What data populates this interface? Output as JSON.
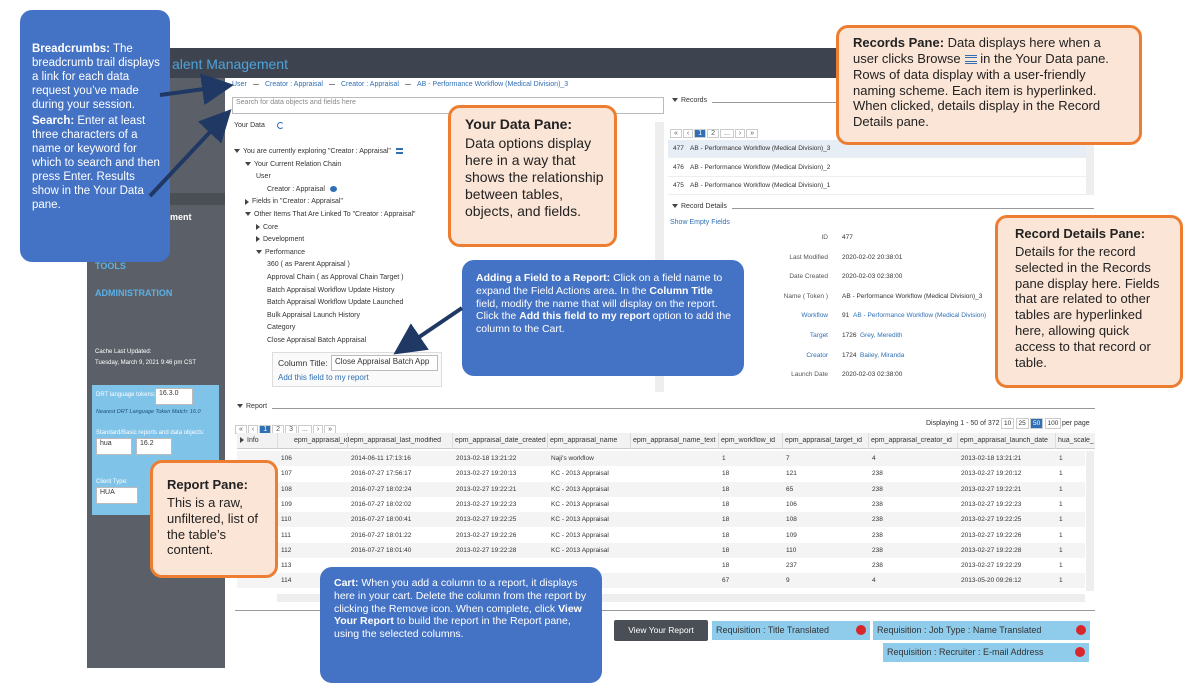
{
  "header": {
    "app_title": "alent Management"
  },
  "sidebar": {
    "nav": [
      "ment",
      "TOOLS",
      "ADMINISTRATION"
    ],
    "cache_label": "Cache Last Updated:",
    "cache_value": "Tuesday, March 9, 2021 9:46 pm CST",
    "drt_label": "DRT language tokens:",
    "drt_value": "16.3.0",
    "drt_match": "Nearest DRT Language Token Match: 16.0",
    "std_label": "Standard/Basic reports and data objects:",
    "std_values": [
      "hua",
      "16.2"
    ],
    "client_label": "Client Type:",
    "client_value": "HUA"
  },
  "breadcrumbs": [
    "User",
    "Creator : Appraisal",
    "Creator : Appraisal",
    "AB - Performance Workflow (Medical Division)_3"
  ],
  "search_placeholder": "Search for data objects and fields here",
  "your_data": {
    "label": "Your Data",
    "tree": [
      {
        "text": "You are currently exploring \"Creator : Appraisal\"",
        "icon": true,
        "expanded": true,
        "children": [
          {
            "text": "Your Current Relation Chain",
            "expanded": true,
            "children": [
              {
                "text": "User",
                "children": [
                  {
                    "text": "Creator : Appraisal",
                    "icon": true
                  }
                ]
              }
            ]
          },
          {
            "text": "Fields in \"Creator : Appraisal\"",
            "expanded": false
          },
          {
            "text": "Other Items That Are Linked To \"Creator : Appraisal\"",
            "expanded": true,
            "children": [
              {
                "text": "Core",
                "expanded": false
              },
              {
                "text": "Development",
                "expanded": false
              },
              {
                "text": "Performance",
                "expanded": true,
                "children": [
                  {
                    "text": "360 ( as Parent Appraisal )"
                  },
                  {
                    "text": "Approval Chain ( as Approval Chain Target )"
                  },
                  {
                    "text": "Batch Appraisal Workflow Update History"
                  },
                  {
                    "text": "Batch Appraisal Workflow Update Launched"
                  },
                  {
                    "text": "Bulk Appraisal Launch History"
                  },
                  {
                    "text": "Category"
                  },
                  {
                    "text": "Close Appraisal Batch Appraisal"
                  }
                ]
              }
            ]
          }
        ]
      }
    ],
    "column_title_label": "Column Title:",
    "column_title_value": "Close Appraisal Batch App",
    "add_link": "Add this field to my report"
  },
  "records": {
    "label": "Records",
    "pager": [
      "«",
      "‹",
      "1",
      "2",
      "...",
      "›",
      "»"
    ],
    "rows": [
      {
        "id": 477,
        "name": "AB - Performance Workflow (Medical Division)_3"
      },
      {
        "id": 476,
        "name": "AB - Performance Workflow (Medical Division)_2"
      },
      {
        "id": 475,
        "name": "AB - Performance Workflow (Medical Division)_1"
      }
    ]
  },
  "record_details": {
    "label": "Record Details",
    "show_empty": "Show Empty Fields",
    "fields": [
      {
        "label": "ID",
        "value": "477"
      },
      {
        "label": "Last Modified",
        "value": "2020-02-02 20:38:01"
      },
      {
        "label": "Date Created",
        "value": "2020-02-03 02:38:00"
      },
      {
        "label": "Name ( Token )",
        "value": "AB - Performance Workflow (Medical Division)_3"
      },
      {
        "label": "Workflow",
        "id": "91",
        "value": "AB - Performance Workflow (Medical Division)",
        "link": true
      },
      {
        "label": "Target",
        "id": "1726",
        "value": "Grey, Meredith",
        "link": true
      },
      {
        "label": "Creator",
        "id": "1724",
        "value": "Bailey, Miranda",
        "link": true
      },
      {
        "label": "Launch Date",
        "value": "2020-02-03 02:38:00"
      }
    ]
  },
  "report": {
    "label": "Report",
    "pager": [
      "«",
      "‹",
      "1",
      "2",
      "3",
      "...",
      "›",
      "»"
    ],
    "displaying": "Displaying 1 - 50 of 372",
    "page_sizes": [
      "10",
      "25",
      "50",
      "100"
    ],
    "per_page": "per page",
    "info": "Info",
    "columns": [
      "epm_appraisal_id",
      "epm_appraisal_last_modified",
      "epm_appraisal_date_created",
      "epm_appraisal_name",
      "epm_appraisal_name_text",
      "epm_workflow_id",
      "epm_appraisal_target_id",
      "epm_appraisal_creator_id",
      "epm_appraisal_launch_date",
      "hua_scale_"
    ],
    "rows": [
      [
        106,
        "2014-06-11 17:13:16",
        "2013-02-18 13:21:22",
        "Naji's workflow",
        null,
        1,
        7,
        4,
        "2013-02-18 13:21:21",
        1
      ],
      [
        107,
        "2016-07-27 17:56:17",
        "2013-02-27 19:20:13",
        "KC - 2013 Appraisal",
        null,
        18,
        121,
        238,
        "2013-02-27 19:20:12",
        1
      ],
      [
        108,
        "2016-07-27 18:02:24",
        "2013-02-27 19:22:21",
        "KC - 2013 Appraisal",
        null,
        18,
        65,
        238,
        "2013-02-27 19:22:21",
        1
      ],
      [
        109,
        "2016-07-27 18:02:02",
        "2013-02-27 19:22:23",
        "KC - 2013 Appraisal",
        null,
        18,
        106,
        238,
        "2013-02-27 19:22:23",
        1
      ],
      [
        110,
        "2016-07-27 18:00:41",
        "2013-02-27 19:22:25",
        "KC - 2013 Appraisal",
        null,
        18,
        108,
        238,
        "2013-02-27 19:22:25",
        1
      ],
      [
        111,
        "2016-07-27 18:01:22",
        "2013-02-27 19:22:26",
        "KC - 2013 Appraisal",
        null,
        18,
        109,
        238,
        "2013-02-27 19:22:26",
        1
      ],
      [
        112,
        "2016-07-27 18:01:40",
        "2013-02-27 19:22:28",
        "KC - 2013 Appraisal",
        null,
        18,
        110,
        238,
        "2013-02-27 19:22:28",
        1
      ],
      [
        113,
        null,
        null,
        null,
        null,
        18,
        237,
        238,
        "2013-02-27 19:22:29",
        1
      ],
      [
        114,
        null,
        null,
        null,
        null,
        67,
        9,
        4,
        "2013-05-20 09:26:12",
        1
      ]
    ]
  },
  "cart": {
    "button": "View Your Report",
    "items": [
      "Requisition : Title Translated",
      "Requisition : Job Type : Name Translated",
      "Requisition : Recruiter : E-mail Address"
    ]
  },
  "callouts": [
    {
      "paragraphs": [
        [
          {
            "text": "Breadcrumbs:",
            "bold": true
          },
          {
            "text": " The breadcrumb trail displays a link for each data request you’ve made during your session."
          }
        ],
        [
          {
            "text": "Search:",
            "bold": true
          },
          {
            "text": " Enter at least three characters of a name or keyword for which to search and then press Enter. Results show in the Your Data pane."
          }
        ]
      ]
    },
    {
      "paragraphs": [
        [
          {
            "text": "Your Data Pane:",
            "bold": true
          }
        ],
        [
          {
            "text": "Data options display here in a way that shows the relationship between tables, objects, and fields."
          }
        ]
      ]
    },
    {
      "paragraphs": [
        [
          {
            "text": "Records Pane:",
            "bold": true
          },
          {
            "text": " Data displays here when a user clicks Browse",
            "icon": true
          },
          {
            "text": " in the Your Data pane. Rows of data display with a user-friendly naming scheme. Each item is hyperlinked. When clicked, details display in the Record Details pane."
          }
        ]
      ]
    },
    {
      "paragraphs": [
        [
          {
            "text": "Record Details Pane:",
            "bold": true
          }
        ],
        [
          {
            "text": "Details for the record selected in the Records pane display here. Fields that are related to other tables are hyperlinked here, allowing quick access to that record or table."
          }
        ]
      ]
    },
    {
      "paragraphs": [
        [
          {
            "text": "Adding a Field to a Report:",
            "bold": true
          },
          {
            "text": " Click on a field name to expand the Field Actions area. In the "
          },
          {
            "text": "Column Title",
            "bold": true
          },
          {
            "text": " field, modify the name that will display on the report. Click the "
          },
          {
            "text": "Add this field to my report",
            "bold": true
          },
          {
            "text": " option to add the column to the Cart."
          }
        ]
      ]
    },
    {
      "paragraphs": [
        [
          {
            "text": "Report Pane:",
            "bold": true
          }
        ],
        [
          {
            "text": "This is a raw, unfiltered, list of the table’s content."
          }
        ]
      ]
    },
    {
      "paragraphs": [
        [
          {
            "text": "Cart:",
            "bold": true
          },
          {
            "text": " When you add a column to a report, it displays here in your cart. Delete the column from the report by clicking the Remove icon. When complete, click "
          },
          {
            "text": "View Your Report",
            "bold": true
          },
          {
            "text": " to build the report in the Report pane, using the selected columns."
          }
        ]
      ]
    }
  ]
}
